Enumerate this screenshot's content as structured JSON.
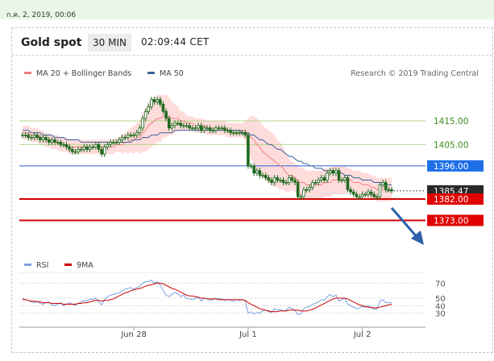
{
  "topbar": {
    "date_text": "ก.ค. 2, 2019, 00:06"
  },
  "header": {
    "title": "Gold spot",
    "timeframe": "30 MIN",
    "time": "02:09:44 CET"
  },
  "legend": {
    "ma20_label": "MA 20 + Bollinger Bands",
    "ma50_label": "MA 50",
    "credit": "Research © 2019 Trading Central",
    "rsi_label": "RSI",
    "ma9_label": "9MA"
  },
  "colors": {
    "candle": "#1f6b1f",
    "band_fill": "#ffd6d6",
    "ma20": "#f08080",
    "ma50": "#3b5f9a",
    "resistance": "#b4d68a",
    "resistance_text": "#3a8a1a",
    "pivot": "#2f5bd8",
    "pivot_label_bg": "#1e6fe8",
    "support": "#d40000",
    "support_label_bg": "#e00000",
    "price_label_bg": "#2a2a2a",
    "arrow": "#2b5fa8",
    "rsi_line": "#7aa0e0",
    "ma9_line": "#cc0000"
  },
  "chart_data": {
    "type": "candlestick",
    "title": "Gold spot",
    "ylim": [
      1364,
      1432
    ],
    "levels": [
      {
        "value": 1415.0,
        "label": "1415.00",
        "kind": "resistance"
      },
      {
        "value": 1405.0,
        "label": "1405.00",
        "kind": "resistance"
      },
      {
        "value": 1396.0,
        "label": "1396.00",
        "kind": "pivot"
      },
      {
        "value": 1385.47,
        "label": "1385.47",
        "kind": "last_price"
      },
      {
        "value": 1382.0,
        "label": "1382.00",
        "kind": "support"
      },
      {
        "value": 1373.0,
        "label": "1373.00",
        "kind": "support"
      }
    ],
    "x_ticks": [
      {
        "index": 38,
        "label": "Jun 28"
      },
      {
        "index": 77,
        "label": "Jul 1"
      },
      {
        "index": 116,
        "label": "Jul 2"
      }
    ],
    "close": [
      1409,
      1409,
      1408,
      1408,
      1409,
      1408,
      1407,
      1408,
      1407,
      1406,
      1407,
      1406,
      1406,
      1405,
      1405,
      1404,
      1403,
      1402,
      1402,
      1403,
      1403,
      1404,
      1403,
      1404,
      1404,
      1405,
      1403,
      1401,
      1404,
      1405,
      1406,
      1406,
      1406,
      1407,
      1408,
      1408,
      1409,
      1409,
      1409,
      1410,
      1412,
      1416,
      1419,
      1421,
      1424,
      1423,
      1424,
      1422,
      1419,
      1416,
      1412,
      1413,
      1414,
      1414,
      1413,
      1413,
      1413,
      1412,
      1412,
      1412,
      1413,
      1411,
      1412,
      1412,
      1411,
      1411,
      1412,
      1412,
      1412,
      1411,
      1411,
      1410,
      1410,
      1410,
      1410,
      1410,
      1409,
      1396,
      1396,
      1393,
      1394,
      1392,
      1392,
      1391,
      1390,
      1389,
      1391,
      1390,
      1390,
      1389,
      1389,
      1391,
      1390,
      1389,
      1383,
      1383,
      1386,
      1386,
      1387,
      1389,
      1389,
      1390,
      1391,
      1390,
      1393,
      1394,
      1393,
      1394,
      1390,
      1390,
      1391,
      1386,
      1385,
      1384,
      1383,
      1383,
      1384,
      1384,
      1385,
      1384,
      1383,
      1383,
      1388,
      1389,
      1386,
      1386,
      1385.47
    ],
    "ma20": [
      1410,
      1410,
      1410,
      1409,
      1409,
      1409,
      1408,
      1408,
      1407,
      1407,
      1406,
      1406,
      1406,
      1405,
      1405,
      1405,
      1404,
      1404,
      1404,
      1404,
      1404,
      1404,
      1404,
      1404,
      1404,
      1404,
      1404,
      1404,
      1404,
      1404,
      1404,
      1404,
      1405,
      1405,
      1405,
      1406,
      1406,
      1407,
      1407,
      1408,
      1408,
      1410,
      1411,
      1413,
      1414,
      1415,
      1416,
      1416,
      1417,
      1417,
      1417,
      1416,
      1416,
      1416,
      1415,
      1415,
      1414,
      1414,
      1414,
      1413,
      1413,
      1413,
      1413,
      1412,
      1412,
      1412,
      1412,
      1412,
      1412,
      1412,
      1411,
      1411,
      1411,
      1411,
      1411,
      1411,
      1411,
      1409,
      1408,
      1407,
      1405,
      1404,
      1402,
      1401,
      1400,
      1399,
      1398,
      1397,
      1396,
      1395,
      1393,
      1392,
      1392,
      1391,
      1390,
      1389,
      1389,
      1388,
      1388,
      1388,
      1388,
      1388,
      1388,
      1389,
      1389,
      1389,
      1390,
      1390,
      1390,
      1390,
      1390,
      1390,
      1390,
      1389,
      1389,
      1389,
      1388,
      1388,
      1388,
      1387,
      1387,
      1386,
      1386,
      1386,
      1386,
      1386,
      1386
    ],
    "ma50": [
      1411,
      1411,
      1411,
      1410,
      1410,
      1410,
      1410,
      1409,
      1409,
      1409,
      1409,
      1408,
      1408,
      1408,
      1408,
      1407,
      1407,
      1407,
      1407,
      1407,
      1406,
      1406,
      1406,
      1406,
      1406,
      1406,
      1406,
      1406,
      1406,
      1406,
      1406,
      1406,
      1406,
      1406,
      1406,
      1406,
      1406,
      1406,
      1407,
      1407,
      1407,
      1408,
      1408,
      1408,
      1409,
      1409,
      1409,
      1410,
      1410,
      1410,
      1410,
      1410,
      1411,
      1411,
      1411,
      1411,
      1411,
      1411,
      1411,
      1411,
      1411,
      1411,
      1411,
      1411,
      1411,
      1411,
      1411,
      1411,
      1411,
      1411,
      1411,
      1411,
      1411,
      1411,
      1411,
      1410,
      1410,
      1410,
      1409,
      1409,
      1408,
      1407,
      1407,
      1406,
      1405,
      1405,
      1404,
      1403,
      1403,
      1402,
      1401,
      1400,
      1400,
      1399,
      1398,
      1398,
      1397,
      1397,
      1396,
      1396,
      1395,
      1395,
      1395,
      1394,
      1394,
      1394,
      1394,
      1393,
      1393,
      1393,
      1392,
      1392,
      1392,
      1391,
      1391,
      1391,
      1390,
      1390,
      1390,
      1390,
      1389,
      1389,
      1389,
      1389,
      1388,
      1388,
      1388
    ],
    "band_width": [
      3,
      3,
      3,
      3,
      3,
      3,
      3,
      3,
      3,
      3,
      3,
      3,
      3,
      3,
      3,
      3,
      3,
      3,
      3,
      3,
      3,
      3,
      3,
      3,
      3,
      3,
      3,
      3,
      3,
      3,
      3,
      3,
      3,
      3,
      4,
      4,
      5,
      5,
      6,
      6,
      7,
      8,
      9,
      10,
      10,
      10,
      10,
      10,
      9,
      9,
      8,
      7,
      6,
      5,
      4,
      4,
      3,
      3,
      3,
      3,
      3,
      3,
      3,
      3,
      3,
      3,
      3,
      3,
      3,
      3,
      3,
      3,
      3,
      3,
      3,
      3,
      4,
      7,
      9,
      10,
      11,
      11,
      11,
      11,
      11,
      11,
      11,
      10,
      10,
      9,
      8,
      7,
      6,
      6,
      6,
      6,
      6,
      6,
      6,
      6,
      6,
      6,
      6,
      6,
      6,
      6,
      6,
      6,
      6,
      6,
      6,
      5,
      5,
      5,
      5,
      5,
      5,
      5,
      5,
      5,
      5,
      5,
      5,
      5,
      5,
      5,
      5
    ],
    "rsi": {
      "ylim": [
        20,
        80
      ],
      "ticks": [
        70,
        50,
        40,
        30
      ],
      "rsi": [
        50,
        48,
        47,
        45,
        44,
        46,
        43,
        42,
        44,
        45,
        41,
        40,
        42,
        44,
        40,
        42,
        44,
        42,
        40,
        43,
        45,
        47,
        46,
        49,
        48,
        50,
        45,
        41,
        48,
        52,
        54,
        55,
        56,
        57,
        60,
        62,
        63,
        64,
        62,
        64,
        66,
        70,
        72,
        72,
        74,
        70,
        72,
        68,
        60,
        54,
        52,
        55,
        58,
        56,
        52,
        54,
        50,
        49,
        48,
        50,
        52,
        46,
        50,
        49,
        47,
        48,
        50,
        49,
        49,
        47,
        48,
        47,
        46,
        48,
        47,
        48,
        46,
        30,
        32,
        29,
        31,
        30,
        33,
        34,
        32,
        31,
        36,
        34,
        35,
        33,
        34,
        38,
        36,
        34,
        28,
        29,
        36,
        38,
        39,
        42,
        43,
        45,
        48,
        47,
        52,
        55,
        52,
        54,
        46,
        48,
        50,
        42,
        40,
        38,
        36,
        37,
        39,
        38,
        40,
        37,
        35,
        36,
        46,
        48,
        44,
        44,
        44
      ],
      "ma9": [
        48,
        48,
        47,
        46,
        46,
        45,
        45,
        44,
        44,
        44,
        43,
        43,
        43,
        43,
        42,
        42,
        42,
        42,
        42,
        43,
        43,
        44,
        44,
        45,
        46,
        47,
        47,
        46,
        47,
        47,
        48,
        49,
        51,
        53,
        55,
        57,
        58,
        60,
        61,
        62,
        63,
        64,
        66,
        67,
        68,
        69,
        70,
        70,
        69,
        67,
        65,
        63,
        62,
        60,
        58,
        56,
        54,
        53,
        53,
        52,
        51,
        50,
        50,
        49,
        49,
        49,
        49,
        48,
        48,
        48,
        48,
        48,
        48,
        48,
        48,
        48,
        47,
        44,
        42,
        40,
        38,
        36,
        35,
        34,
        33,
        32,
        32,
        32,
        33,
        33,
        33,
        34,
        34,
        34,
        34,
        33,
        33,
        33,
        34,
        35,
        37,
        39,
        41,
        43,
        45,
        47,
        49,
        50,
        50,
        50,
        50,
        49,
        47,
        45,
        43,
        41,
        40,
        39,
        38,
        38,
        37,
        37,
        38,
        39,
        40,
        41,
        42
      ]
    }
  }
}
